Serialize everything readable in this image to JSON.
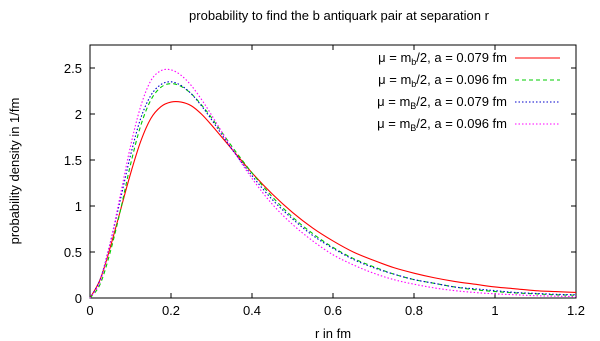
{
  "chart_data": {
    "type": "line",
    "title": "probability to find the b antiquark pair at separation r",
    "xlabel": "r in fm",
    "ylabel": "probability density in 1/fm",
    "xlim": [
      0,
      1.2
    ],
    "ylim": [
      0,
      2.75
    ],
    "xticks": [
      "0",
      "0.2",
      "0.4",
      "0.6",
      "0.8",
      "1",
      "1.2"
    ],
    "yticks": [
      "0",
      "0.5",
      "1",
      "1.5",
      "2",
      "2.5"
    ],
    "legend_position": "top-right",
    "grid": false,
    "series": [
      {
        "name": "μ = m_b/2, a = 0.079 fm",
        "legend": {
          "pre": "μ = m",
          "sub": "b",
          "post": "/2, a = 0.079 fm"
        },
        "color": "#ff0000",
        "dash": "solid",
        "x": [
          0,
          0.025,
          0.05,
          0.075,
          0.1,
          0.125,
          0.15,
          0.175,
          0.2,
          0.225,
          0.25,
          0.275,
          0.3,
          0.35,
          0.4,
          0.45,
          0.5,
          0.55,
          0.6,
          0.65,
          0.7,
          0.75,
          0.8,
          0.85,
          0.9,
          0.95,
          1.0,
          1.05,
          1.1,
          1.15,
          1.2
        ],
        "y": [
          0,
          0.2,
          0.55,
          0.95,
          1.35,
          1.7,
          1.95,
          2.08,
          2.13,
          2.13,
          2.09,
          2.0,
          1.88,
          1.62,
          1.36,
          1.13,
          0.93,
          0.76,
          0.62,
          0.5,
          0.41,
          0.33,
          0.27,
          0.22,
          0.18,
          0.15,
          0.12,
          0.1,
          0.08,
          0.07,
          0.06
        ]
      },
      {
        "name": "μ = m_b/2, a = 0.096 fm",
        "legend": {
          "pre": "μ = m",
          "sub": "b",
          "post": "/2, a = 0.096 fm"
        },
        "color": "#00cc00",
        "dash": "dashed",
        "x": [
          0,
          0.025,
          0.05,
          0.075,
          0.1,
          0.125,
          0.15,
          0.175,
          0.2,
          0.225,
          0.25,
          0.275,
          0.3,
          0.35,
          0.4,
          0.45,
          0.5,
          0.55,
          0.6,
          0.65,
          0.7,
          0.75,
          0.8,
          0.85,
          0.9,
          0.95,
          1.0,
          1.05,
          1.1,
          1.15,
          1.2
        ],
        "y": [
          0,
          0.15,
          0.5,
          0.95,
          1.45,
          1.87,
          2.15,
          2.29,
          2.33,
          2.3,
          2.22,
          2.1,
          1.96,
          1.65,
          1.36,
          1.1,
          0.88,
          0.7,
          0.55,
          0.43,
          0.34,
          0.26,
          0.2,
          0.16,
          0.12,
          0.09,
          0.07,
          0.055,
          0.045,
          0.035,
          0.03
        ]
      },
      {
        "name": "μ = m_B/2, a = 0.079 fm",
        "legend": {
          "pre": "μ = m",
          "sub": "B",
          "post": "/2, a = 0.079 fm"
        },
        "color": "#0000cc",
        "dash": "dotted",
        "x": [
          0,
          0.025,
          0.05,
          0.075,
          0.1,
          0.125,
          0.15,
          0.175,
          0.2,
          0.225,
          0.25,
          0.275,
          0.3,
          0.35,
          0.4,
          0.45,
          0.5,
          0.55,
          0.6,
          0.65,
          0.7,
          0.75,
          0.8,
          0.85,
          0.9,
          0.95,
          1.0,
          1.05,
          1.1,
          1.15,
          1.2
        ],
        "y": [
          0,
          0.2,
          0.6,
          1.07,
          1.55,
          1.95,
          2.2,
          2.32,
          2.35,
          2.31,
          2.22,
          2.09,
          1.94,
          1.62,
          1.33,
          1.07,
          0.86,
          0.68,
          0.54,
          0.42,
          0.33,
          0.26,
          0.2,
          0.16,
          0.12,
          0.1,
          0.08,
          0.06,
          0.05,
          0.04,
          0.035
        ]
      },
      {
        "name": "μ = m_B/2, a = 0.096 fm",
        "legend": {
          "pre": "μ = m",
          "sub": "B",
          "post": "/2, a = 0.096 fm"
        },
        "color": "#ff00ff",
        "dash": "dotted",
        "x": [
          0,
          0.025,
          0.05,
          0.075,
          0.1,
          0.125,
          0.15,
          0.175,
          0.2,
          0.225,
          0.25,
          0.275,
          0.3,
          0.35,
          0.4,
          0.45,
          0.5,
          0.55,
          0.6,
          0.65,
          0.7,
          0.75,
          0.8,
          0.85,
          0.9,
          0.95,
          1.0,
          1.05,
          1.1,
          1.15,
          1.2
        ],
        "y": [
          0,
          0.18,
          0.6,
          1.12,
          1.65,
          2.08,
          2.36,
          2.47,
          2.48,
          2.42,
          2.31,
          2.16,
          1.99,
          1.63,
          1.3,
          1.02,
          0.8,
          0.62,
          0.47,
          0.36,
          0.27,
          0.2,
          0.15,
          0.11,
          0.08,
          0.06,
          0.045,
          0.035,
          0.025,
          0.02,
          0.015
        ]
      }
    ]
  }
}
